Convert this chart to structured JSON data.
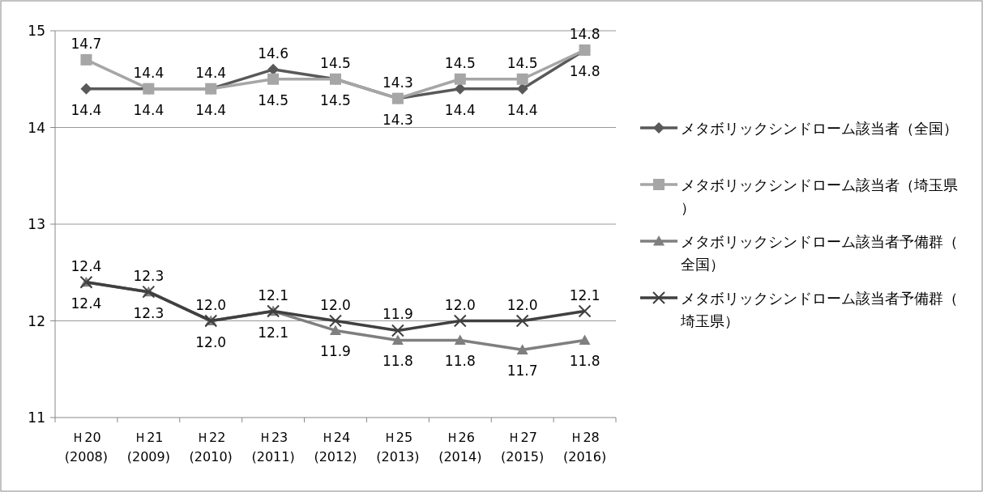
{
  "chart_data": {
    "type": "line",
    "categories": [
      "Ｈ20\n(2008)",
      "Ｈ21\n(2009)",
      "Ｈ22\n(2010)",
      "Ｈ23\n(2011)",
      "Ｈ24\n(2012)",
      "Ｈ25\n(2013)",
      "Ｈ26\n(2014)",
      "Ｈ27\n(2015)",
      "Ｈ28\n(2016)"
    ],
    "series": [
      {
        "name": "メタボリックシンドローム該当者（全国）",
        "color": "#595959",
        "marker": "diamond",
        "values": [
          14.4,
          14.4,
          14.4,
          14.6,
          14.5,
          14.3,
          14.4,
          14.4,
          14.8
        ],
        "value_labels": [
          "14.4",
          "14.4",
          "14.4",
          "14.6",
          "14.5",
          "14.3",
          "14.4",
          "14.4",
          "14.8"
        ]
      },
      {
        "name": "メタボリックシンドローム該当者（埼玉県）",
        "color": "#a6a6a6",
        "marker": "square",
        "values": [
          14.7,
          14.4,
          14.4,
          14.5,
          14.5,
          14.3,
          14.5,
          14.5,
          14.8
        ],
        "value_labels": [
          "14.7",
          "14.4",
          "14.4",
          "14.5",
          "14.5",
          "14.3",
          "14.5",
          "14.5",
          "14.8"
        ]
      },
      {
        "name": "メタボリックシンドローム該当者予備群（全国）",
        "color": "#7f7f7f",
        "marker": "triangle",
        "values": [
          12.4,
          12.3,
          12.0,
          12.1,
          11.9,
          11.8,
          11.8,
          11.7,
          11.8
        ],
        "value_labels": [
          "12.4",
          "12.3",
          "12.0",
          "12.1",
          "11.9",
          "11.8",
          "11.8",
          "11.7",
          "11.8"
        ]
      },
      {
        "name": "メタボリックシンドローム該当者予備群（埼玉県）",
        "color": "#404040",
        "marker": "cross",
        "values": [
          12.4,
          12.3,
          12.0,
          12.1,
          12.0,
          11.9,
          12.0,
          12.0,
          12.1
        ],
        "value_labels": [
          "12.4",
          "12.3",
          "12.0",
          "12.1",
          "12.0",
          "11.9",
          "12.0",
          "12.0",
          "12.1"
        ]
      }
    ],
    "ylim": [
      11,
      15
    ],
    "yticks": [
      11,
      12,
      13,
      14,
      15
    ],
    "grid": "y",
    "legend": "right"
  }
}
